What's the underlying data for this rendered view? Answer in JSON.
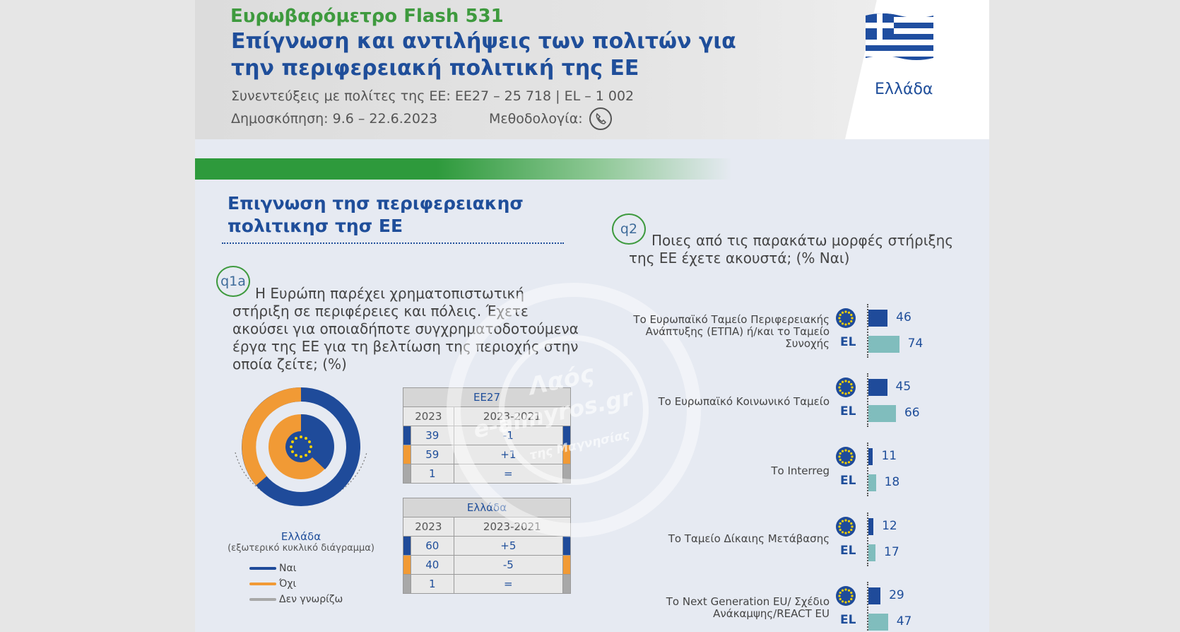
{
  "header": {
    "survey_title": "Ευρωβαρόμετρο Flash 531",
    "report_title": "Επίγνωση και αντιλήψεις των πολιτών για την περιφερειακή πολιτική της ΕΕ",
    "interviews": "Συνεντεύξεις με πολίτες της ΕΕ: ΕΕ27 – 25 718 | EL – 1 002",
    "fieldwork": "Δημοσκόπηση: 9.6 – 22.6.2023",
    "methodology_label": "Μεθοδολογία:",
    "methodology_icon": "phone-icon",
    "country": "Ελλάδα",
    "flag_icon": "greek-flag-icon"
  },
  "colors": {
    "title_blue": "#1f4e9a",
    "green": "#3e9a3e",
    "yes": "#1f4b9a",
    "no": "#f19a35",
    "dont_know": "#a8a8a8",
    "el_bar": "#80bdbd"
  },
  "section": {
    "title": "Επιγνωση τησ περιφερειακησ πολιτικησ τησ ΕΕ"
  },
  "q1a": {
    "badge": "q1a",
    "question": "Η Ευρώπη παρέχει χρηματοπιστωτική στήριξη σε περιφέρειες και πόλεις. Έχετε ακούσει για οποιαδήποτε συγχρηματοδοτούμενα έργα της ΕΕ για τη βελτίωση της περιοχής στην οποία ζείτε; (%)",
    "donut_caption": "Ελλάδα",
    "donut_subcaption": "(εξωτερικό κυκλικό διάγραμμα)",
    "legend": [
      {
        "label": "Ναι",
        "color": "#1f4b9a"
      },
      {
        "label": "Όχι",
        "color": "#f19a35"
      },
      {
        "label": "Δεν γνωρίζω",
        "color": "#a8a8a8"
      }
    ],
    "table_eu": {
      "title": "ΕΕ27",
      "col1": "2023",
      "col2": "2023-2021",
      "rows": [
        {
          "value": "39",
          "change": "-1"
        },
        {
          "value": "59",
          "change": "+1"
        },
        {
          "value": "1",
          "change": "="
        }
      ]
    },
    "table_el": {
      "title": "Ελλάδα",
      "col1": "2023",
      "col2": "2023-2021",
      "rows": [
        {
          "value": "60",
          "change": "+5"
        },
        {
          "value": "40",
          "change": "-5"
        },
        {
          "value": "1",
          "change": "="
        }
      ]
    }
  },
  "q2": {
    "badge": "q2",
    "question": "Ποιες από τις παρακάτω μορφές στήριξης της ΕΕ έχετε ακουστά; (% Ναι)",
    "el_label": "EL",
    "eu_icon": "eu-stars-icon"
  },
  "chart_data": {
    "type": "bar",
    "categories": [
      "Το Ευρωπαϊκό Ταμείο Περιφερειακής Ανάπτυξης (ΕΤΠΑ) ή/και το Ταμείο Συνοχής",
      "Το Ευρωπαϊκό Κοινωνικό Ταμείο",
      "Το Interreg",
      "Το Ταμείο Δίκαιης Μετάβασης",
      "Το Next Generation EU/ Σχέδιο Ανάκαμψης/REACT EU"
    ],
    "series": [
      {
        "values": [
          46,
          45,
          11,
          12,
          29
        ]
      },
      {
        "name": "EL",
        "values": [
          74,
          66,
          18,
          17,
          47
        ]
      }
    ],
    "xlim": [
      0,
      100
    ]
  },
  "watermark": {
    "line1": "Λαός",
    "line2": "e-almyros.gr",
    "line3": "της Μαγνησίας"
  }
}
